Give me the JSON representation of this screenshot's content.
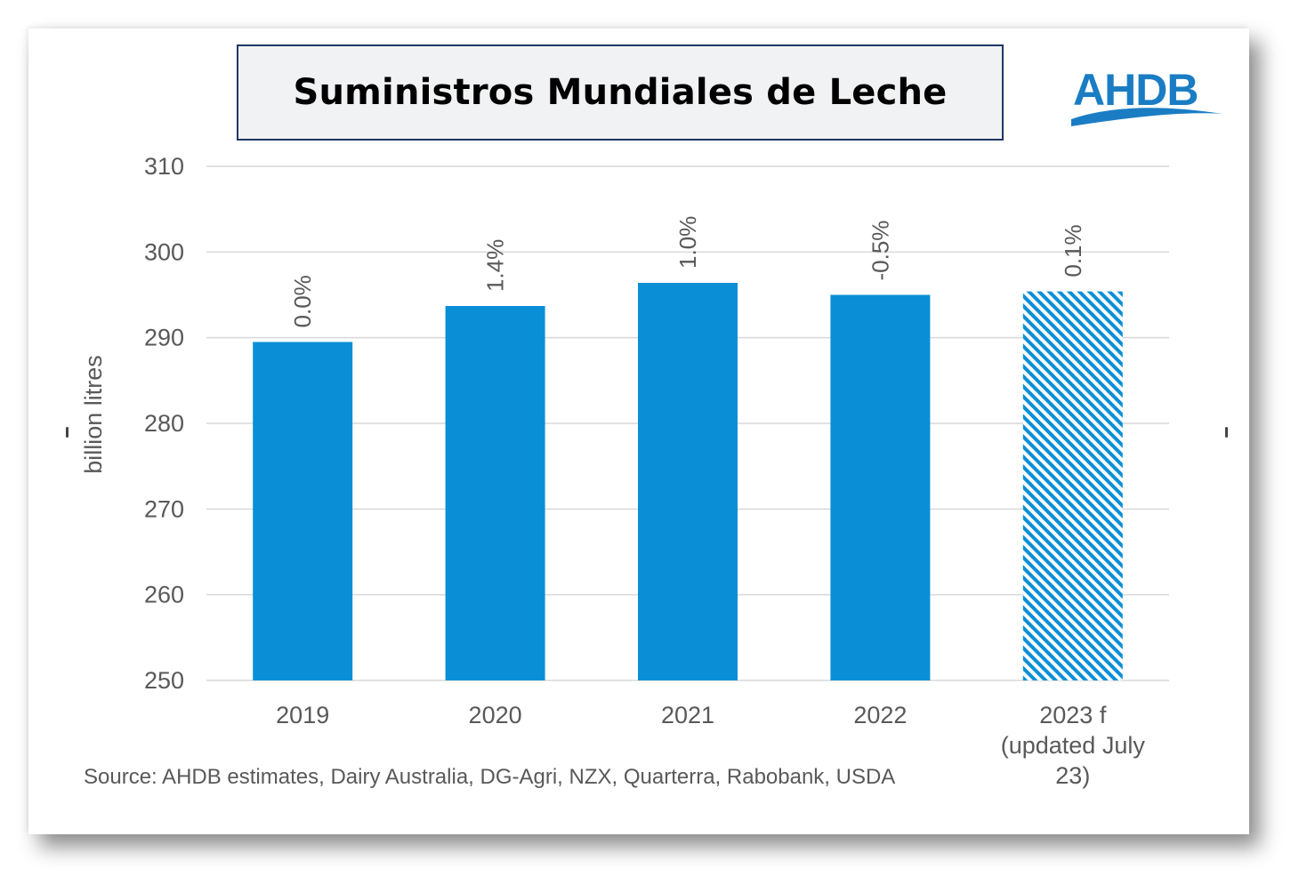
{
  "header": {
    "title": "Suministros Mundiales de Leche"
  },
  "logo": {
    "text": "AHDB",
    "color": "#1a7dc4"
  },
  "chart_data": {
    "type": "bar",
    "categories": [
      "2019",
      "2020",
      "2021",
      "2022",
      "2023 f (updated July 23)"
    ],
    "category_lines": [
      [
        "2019"
      ],
      [
        "2020"
      ],
      [
        "2021"
      ],
      [
        "2022"
      ],
      [
        "2023 f",
        "(updated July",
        "23)"
      ]
    ],
    "values": [
      289.5,
      293.7,
      296.4,
      295.0,
      295.4
    ],
    "data_labels": [
      "0.0%",
      "1.4%",
      "1.0%",
      "-0.5%",
      "0.1%"
    ],
    "forecast": [
      false,
      false,
      false,
      false,
      true
    ],
    "ylabel": "billion litres",
    "ylim": [
      250,
      310
    ],
    "yticks": [
      250,
      260,
      270,
      280,
      290,
      300,
      310
    ],
    "grid": true,
    "bar_color": "#0a8fd6"
  },
  "footer": {
    "source": "Source: AHDB estimates, Dairy Australia, DG-Agri, NZX, Quarterra, Rabobank, USDA"
  }
}
